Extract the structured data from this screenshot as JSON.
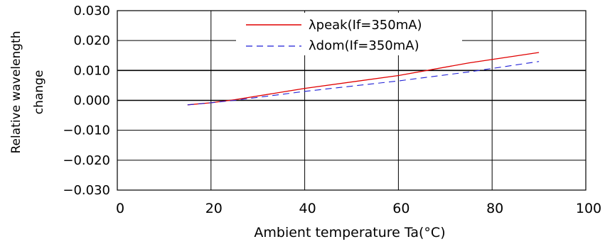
{
  "chart_data": {
    "type": "line",
    "title": "",
    "xlabel": "Ambient temperature Ta(°C)",
    "ylabel_lines": [
      "Relative wavelength",
      "change"
    ],
    "xlim": [
      0,
      100
    ],
    "ylim": [
      -0.03,
      0.03
    ],
    "x_ticks": [
      0,
      20,
      40,
      60,
      80,
      100
    ],
    "x_tick_labels": [
      "0",
      "20",
      "40",
      "60",
      "80",
      "100"
    ],
    "y_ticks": [
      0.03,
      0.02,
      0.01,
      0,
      -0.01,
      -0.02,
      -0.03
    ],
    "y_tick_labels": [
      "0.030",
      "0.020",
      "0.010",
      "0.000",
      "−0.010",
      "−0.020",
      "−0.030"
    ],
    "grid": true,
    "legend_position": "top-center",
    "series": [
      {
        "name": "λpeak(If=350mA)",
        "color": "#e00000",
        "dash": "solid",
        "x": [
          15,
          20,
          25,
          40,
          60,
          75,
          90
        ],
        "y": [
          -0.0015,
          -0.0008,
          0.0002,
          0.004,
          0.0083,
          0.0125,
          0.016
        ]
      },
      {
        "name": "λdom(If=350mA)",
        "color": "#1f1fd6",
        "dash": "dashed",
        "x": [
          15,
          20,
          25,
          40,
          60,
          75,
          90
        ],
        "y": [
          -0.0015,
          -0.0008,
          0.0,
          0.003,
          0.0065,
          0.0095,
          0.013
        ]
      }
    ]
  }
}
